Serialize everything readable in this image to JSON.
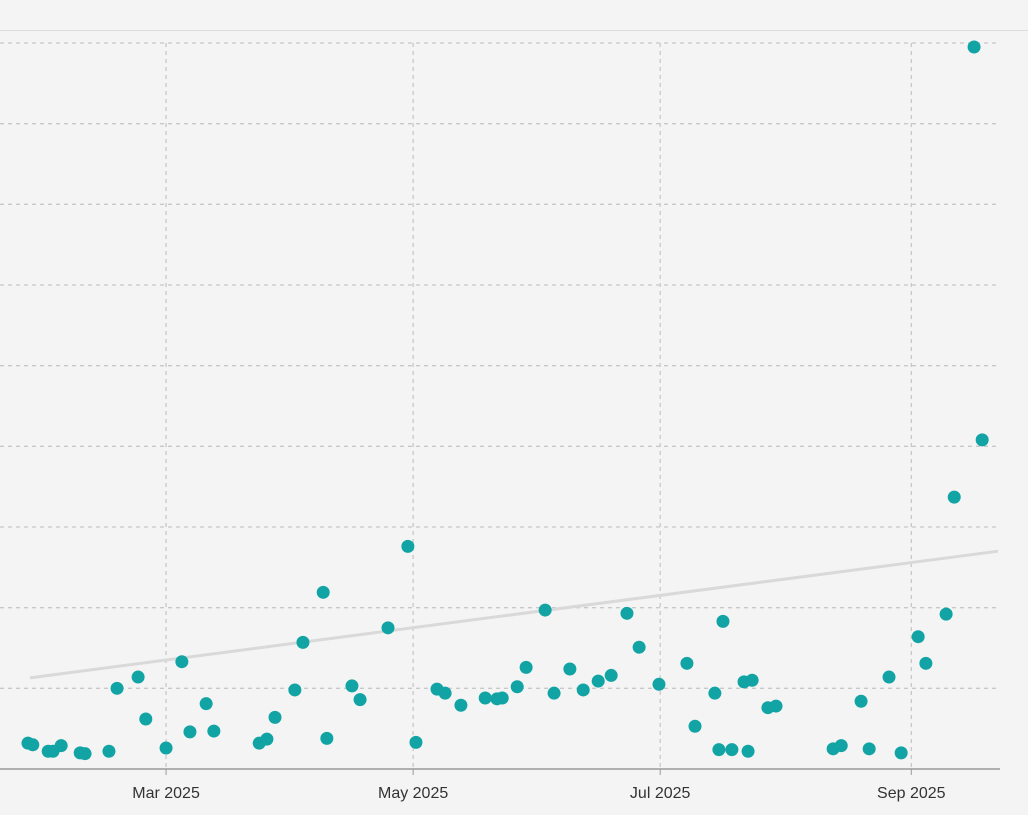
{
  "chart_data": {
    "type": "scatter",
    "x": [
      24.9,
      26.1,
      29.9,
      31.1,
      33.1,
      37.8,
      39.0,
      44.9,
      46.9,
      52.1,
      54.0,
      59.0,
      62.9,
      64.9,
      68.9,
      70.8,
      82.0,
      83.9,
      85.9,
      90.8,
      92.8,
      97.8,
      98.7,
      104.9,
      106.9,
      113.8,
      118.7,
      120.7,
      125.9,
      127.9,
      131.8,
      137.8,
      140.7,
      142.0,
      145.7,
      147.9,
      152.6,
      154.8,
      158.7,
      162.0,
      165.7,
      168.9,
      172.8,
      175.8,
      180.7,
      187.6,
      189.6,
      194.5,
      195.5,
      196.5,
      198.7,
      201.7,
      202.7,
      203.7,
      207.6,
      209.6,
      223.7,
      225.7,
      230.6,
      232.6,
      237.5,
      240.5,
      244.7,
      246.6,
      251.6,
      253.6,
      258.5,
      260.5
    ],
    "values": [
      0.32,
      0.3,
      0.22,
      0.22,
      0.29,
      0.2,
      0.19,
      0.22,
      1.0,
      1.14,
      0.62,
      0.26,
      1.33,
      0.46,
      0.81,
      0.47,
      0.32,
      0.37,
      0.64,
      0.98,
      1.57,
      2.19,
      0.38,
      1.03,
      0.86,
      1.75,
      2.76,
      0.33,
      0.99,
      0.94,
      0.79,
      0.88,
      0.87,
      0.88,
      1.02,
      1.26,
      1.97,
      0.94,
      1.24,
      0.98,
      1.09,
      1.16,
      1.93,
      1.51,
      1.05,
      1.31,
      0.53,
      0.94,
      0.24,
      1.83,
      0.24,
      1.08,
      0.22,
      1.1,
      0.76,
      0.78,
      0.25,
      0.29,
      0.84,
      0.25,
      1.14,
      0.2,
      1.64,
      1.31,
      1.92,
      3.37,
      8.95,
      4.08
    ],
    "color": "#12a4a4",
    "trendline": {
      "x": [
        25.4,
        264.4
      ],
      "y": [
        1.13,
        2.7
      ],
      "color": "#d9d9d9"
    },
    "xlim": [
      18,
      264.9
    ],
    "xticks": [
      {
        "value": 59,
        "label": "Mar 2025"
      },
      {
        "value": 120,
        "label": "May 2025"
      },
      {
        "value": 181,
        "label": "Jul 2025"
      },
      {
        "value": 243,
        "label": "Sep 2025"
      }
    ],
    "ylim": [
      0,
      9
    ],
    "ygrid": [
      1,
      2,
      3,
      4,
      5,
      6,
      7,
      8,
      9
    ],
    "grid": true
  }
}
